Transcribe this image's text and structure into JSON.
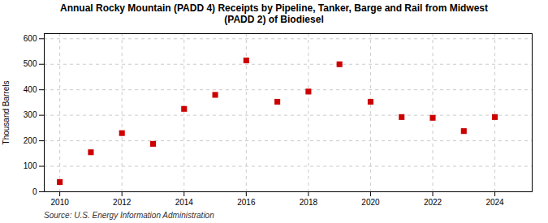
{
  "chart_data": {
    "type": "scatter",
    "title": "Annual Rocky Mountain (PADD 4) Receipts by Pipeline, Tanker, Barge and Rail from Midwest\n(PADD 2) of Biodiesel",
    "ylabel": "Thousand Barrels",
    "annotations": [
      "Source: U.S. Energy Information Administration"
    ],
    "x": [
      2010,
      2011,
      2012,
      2013,
      2014,
      2015,
      2016,
      2017,
      2018,
      2019,
      2020,
      2021,
      2022,
      2023,
      2024
    ],
    "values": [
      38,
      155,
      230,
      188,
      325,
      380,
      515,
      353,
      393,
      500,
      353,
      293,
      290,
      238,
      293
    ],
    "color": "#cc0000",
    "marker": "square",
    "xlim": [
      2009.5,
      2025.2
    ],
    "xticks": [
      2010,
      2012,
      2014,
      2016,
      2018,
      2020,
      2022,
      2024
    ],
    "ylim": [
      0,
      620
    ],
    "yticks": [
      0,
      100,
      200,
      300,
      400,
      500,
      600
    ],
    "grid": true
  }
}
